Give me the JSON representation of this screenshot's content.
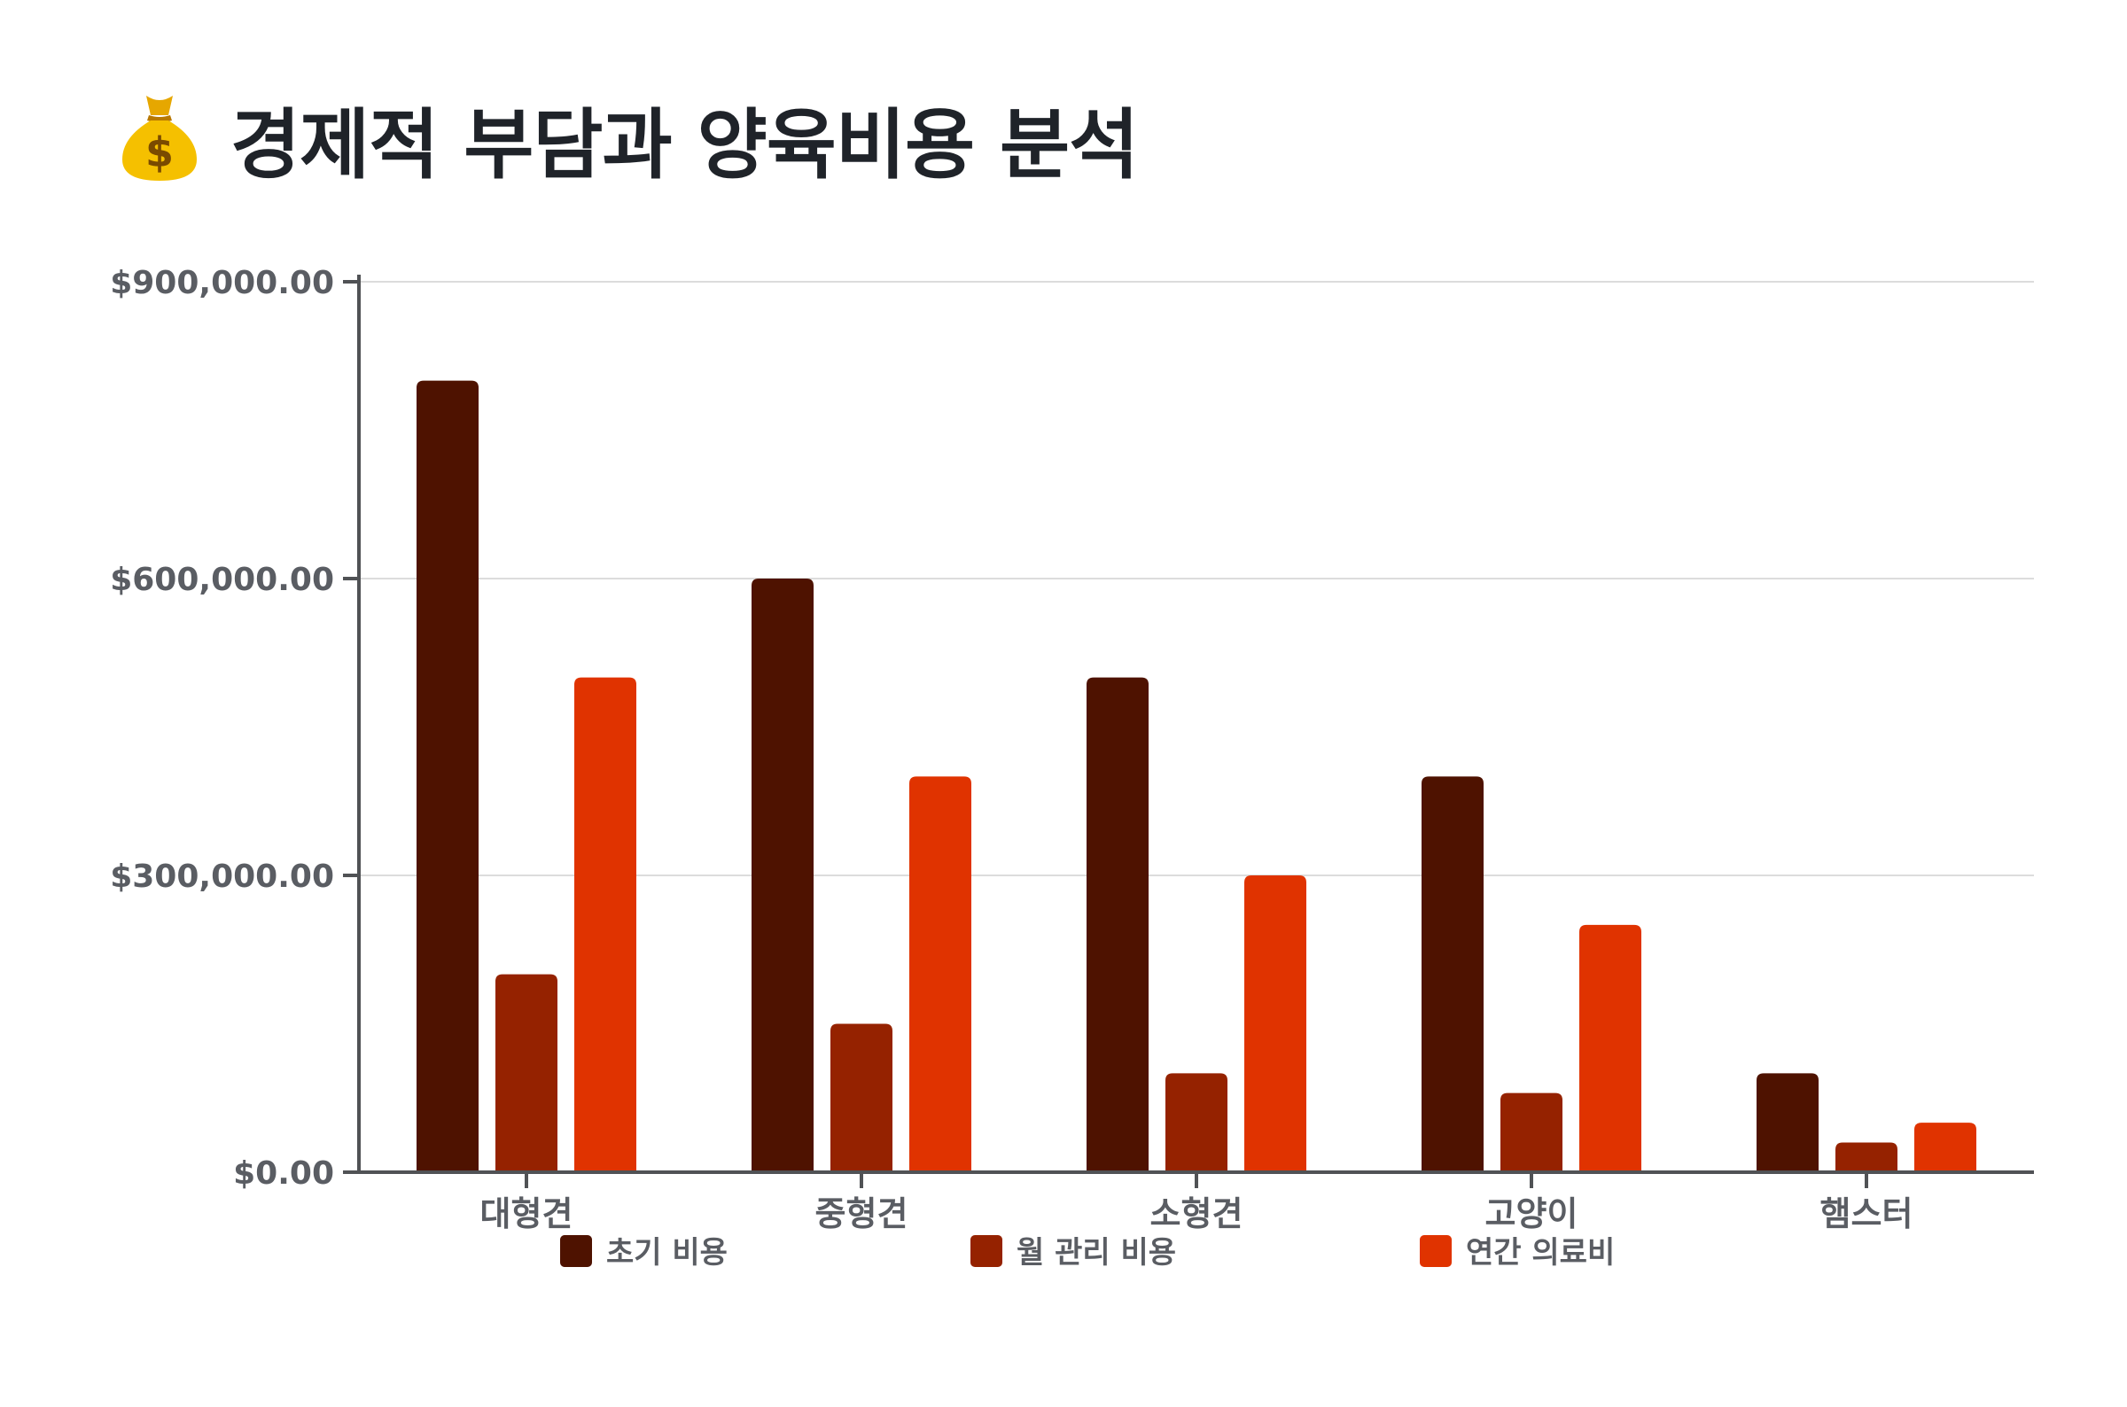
{
  "title": "경제적 부담과 양육비용 분석",
  "title_icon": "money-bag-icon",
  "colors": {
    "series": [
      "#4e1200",
      "#952200",
      "#e03300"
    ],
    "axis": "#505255",
    "grid": "#dcdcdc",
    "text": "#5a5d63"
  },
  "chart_data": {
    "type": "bar",
    "title": "경제적 부담과 양육비용 분석",
    "categories": [
      "대형견",
      "중형견",
      "소형견",
      "고양이",
      "햄스터"
    ],
    "series": [
      {
        "name": "초기 비용",
        "values": [
          800000,
          600000,
          500000,
          400000,
          100000
        ]
      },
      {
        "name": "월 관리 비용",
        "values": [
          200000,
          150000,
          100000,
          80000,
          30000
        ]
      },
      {
        "name": "연간 의료비",
        "values": [
          500000,
          400000,
          300000,
          250000,
          50000
        ]
      }
    ],
    "ylim": [
      0,
      900000
    ],
    "yticks": [
      0,
      300000,
      600000,
      900000
    ],
    "ytick_labels": [
      "$0.00",
      "$300,000.00",
      "$600,000.00",
      "$900,000.00"
    ],
    "grid": true,
    "legend_position": "bottom"
  }
}
